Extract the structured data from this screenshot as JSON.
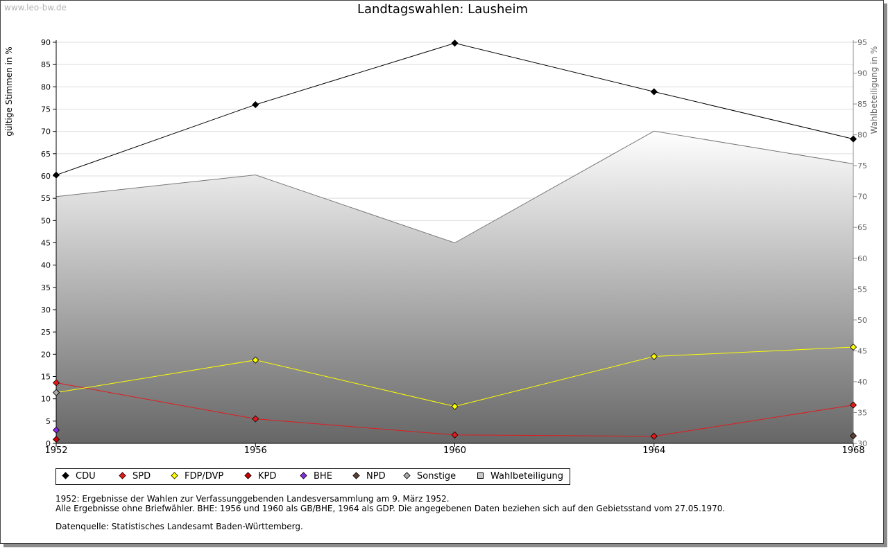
{
  "watermark": "www.leo-bw.de",
  "chart_data": {
    "type": "line",
    "title": "Landtagswahlen: Lausheim",
    "ylabel": "gültige Stimmen in %",
    "y2label": "Wahlbeteiligung in %",
    "x": [
      "1952",
      "1956",
      "1960",
      "1964",
      "1968"
    ],
    "ylim": [
      0,
      90
    ],
    "yticks": [
      0,
      5,
      10,
      15,
      20,
      25,
      30,
      35,
      40,
      45,
      50,
      55,
      60,
      65,
      70,
      75,
      80,
      85,
      90
    ],
    "y2lim": [
      30,
      95
    ],
    "y2ticks": [
      30,
      35,
      40,
      45,
      50,
      55,
      60,
      65,
      70,
      75,
      80,
      85,
      90,
      95
    ],
    "grid": true,
    "legend_position": "bottom",
    "series": [
      {
        "name": "CDU",
        "color": "#000000",
        "values": [
          60.2,
          76.0,
          89.8,
          78.9,
          68.3
        ]
      },
      {
        "name": "SPD",
        "color": "#e31a1c",
        "values": [
          13.6,
          5.5,
          1.9,
          1.6,
          8.6
        ]
      },
      {
        "name": "FDP/DVP",
        "color": "#ffff00",
        "values": [
          11.4,
          18.7,
          8.3,
          19.5,
          21.6
        ]
      },
      {
        "name": "KPD",
        "color": "#cc0000",
        "values": [
          0.9,
          null,
          null,
          null,
          null
        ]
      },
      {
        "name": "BHE",
        "color": "#8a2be2",
        "values": [
          3.0,
          null,
          null,
          null,
          null
        ]
      },
      {
        "name": "NPD",
        "color": "#5c4033",
        "values": [
          null,
          null,
          null,
          null,
          1.7
        ]
      },
      {
        "name": "Sonstige",
        "color": "#a9a9a9",
        "values": [
          11.4,
          null,
          null,
          null,
          null
        ]
      },
      {
        "name": "Wahlbeteiligung",
        "color": "#c8c8c8",
        "axis": "right",
        "type": "area",
        "values": [
          70.0,
          73.5,
          62.5,
          80.6,
          75.3
        ]
      }
    ]
  },
  "notes": [
    "1952: Ergebnisse der Wahlen zur Verfassunggebenden Landesversammlung am 9. März 1952.",
    "Alle Ergebnisse ohne Briefwähler. BHE: 1956 und 1960 als GB/BHE, 1964 als GDP. Die angegebenen Daten beziehen sich auf den Gebietsstand vom 27.05.1970.",
    "",
    "Datenquelle: Statistisches Landesamt Baden-Württemberg."
  ]
}
